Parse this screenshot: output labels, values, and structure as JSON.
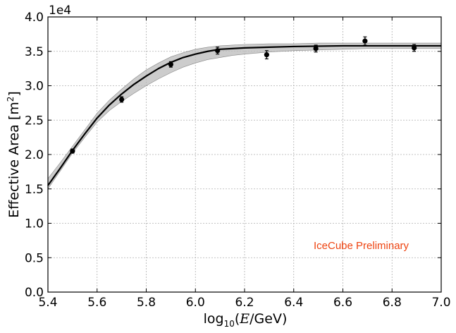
{
  "chart_data": {
    "type": "line",
    "xlabel_prefix": "log",
    "xlabel_sub": "10",
    "xlabel_var": "E",
    "xlabel_suffix": "/GeV)",
    "ylabel_main": "Effective Area [m",
    "ylabel_sup": "2",
    "ylabel_end": "]",
    "y_offset_text": "1e4",
    "annotation": "IceCube Preliminary",
    "annotation_color": "#ee4411",
    "xlim": [
      5.4,
      7.0
    ],
    "ylim": [
      0.0,
      4.0
    ],
    "xticks": [
      "5.4",
      "5.6",
      "5.8",
      "6.0",
      "6.2",
      "6.4",
      "6.6",
      "6.8",
      "7.0"
    ],
    "yticks": [
      "0.0",
      "0.5",
      "1.0",
      "1.5",
      "2.0",
      "2.5",
      "3.0",
      "3.5",
      "4.0"
    ],
    "grid": true,
    "series": [
      {
        "kind": "fit_line",
        "color": "#000000",
        "x": [
          5.4,
          5.45,
          5.5,
          5.55,
          5.6,
          5.65,
          5.7,
          5.75,
          5.8,
          5.85,
          5.9,
          5.95,
          6.0,
          6.05,
          6.1,
          6.15,
          6.2,
          6.3,
          6.4,
          6.5,
          6.6,
          6.7,
          6.8,
          6.9,
          7.0
        ],
        "y": [
          1.55,
          1.8,
          2.06,
          2.3,
          2.53,
          2.72,
          2.88,
          3.02,
          3.14,
          3.25,
          3.34,
          3.41,
          3.46,
          3.5,
          3.53,
          3.54,
          3.55,
          3.56,
          3.57,
          3.575,
          3.58,
          3.58,
          3.58,
          3.58,
          3.58
        ]
      },
      {
        "kind": "uncertainty_band",
        "color": "#bbbbbb",
        "x": [
          5.4,
          5.45,
          5.5,
          5.55,
          5.6,
          5.65,
          5.7,
          5.75,
          5.8,
          5.85,
          5.9,
          5.95,
          6.0,
          6.05,
          6.1,
          6.15,
          6.2,
          6.3,
          6.4,
          6.5,
          6.6,
          6.7,
          6.8,
          6.9,
          7.0
        ],
        "y_low": [
          1.5,
          1.76,
          2.02,
          2.25,
          2.47,
          2.64,
          2.77,
          2.89,
          3.0,
          3.1,
          3.19,
          3.27,
          3.33,
          3.38,
          3.41,
          3.44,
          3.46,
          3.49,
          3.51,
          3.52,
          3.53,
          3.54,
          3.54,
          3.54,
          3.54
        ],
        "y_high": [
          1.65,
          1.88,
          2.12,
          2.36,
          2.6,
          2.79,
          2.95,
          3.1,
          3.23,
          3.33,
          3.42,
          3.48,
          3.53,
          3.56,
          3.58,
          3.59,
          3.6,
          3.61,
          3.61,
          3.62,
          3.62,
          3.62,
          3.62,
          3.62,
          3.62
        ]
      },
      {
        "kind": "points",
        "color": "#000000",
        "x": [
          5.5,
          5.7,
          5.9,
          6.09,
          6.29,
          6.49,
          6.69,
          6.89
        ],
        "y": [
          2.05,
          2.8,
          3.31,
          3.51,
          3.45,
          3.54,
          3.65,
          3.55
        ],
        "err": [
          0.03,
          0.04,
          0.04,
          0.05,
          0.06,
          0.05,
          0.06,
          0.05
        ]
      }
    ]
  }
}
